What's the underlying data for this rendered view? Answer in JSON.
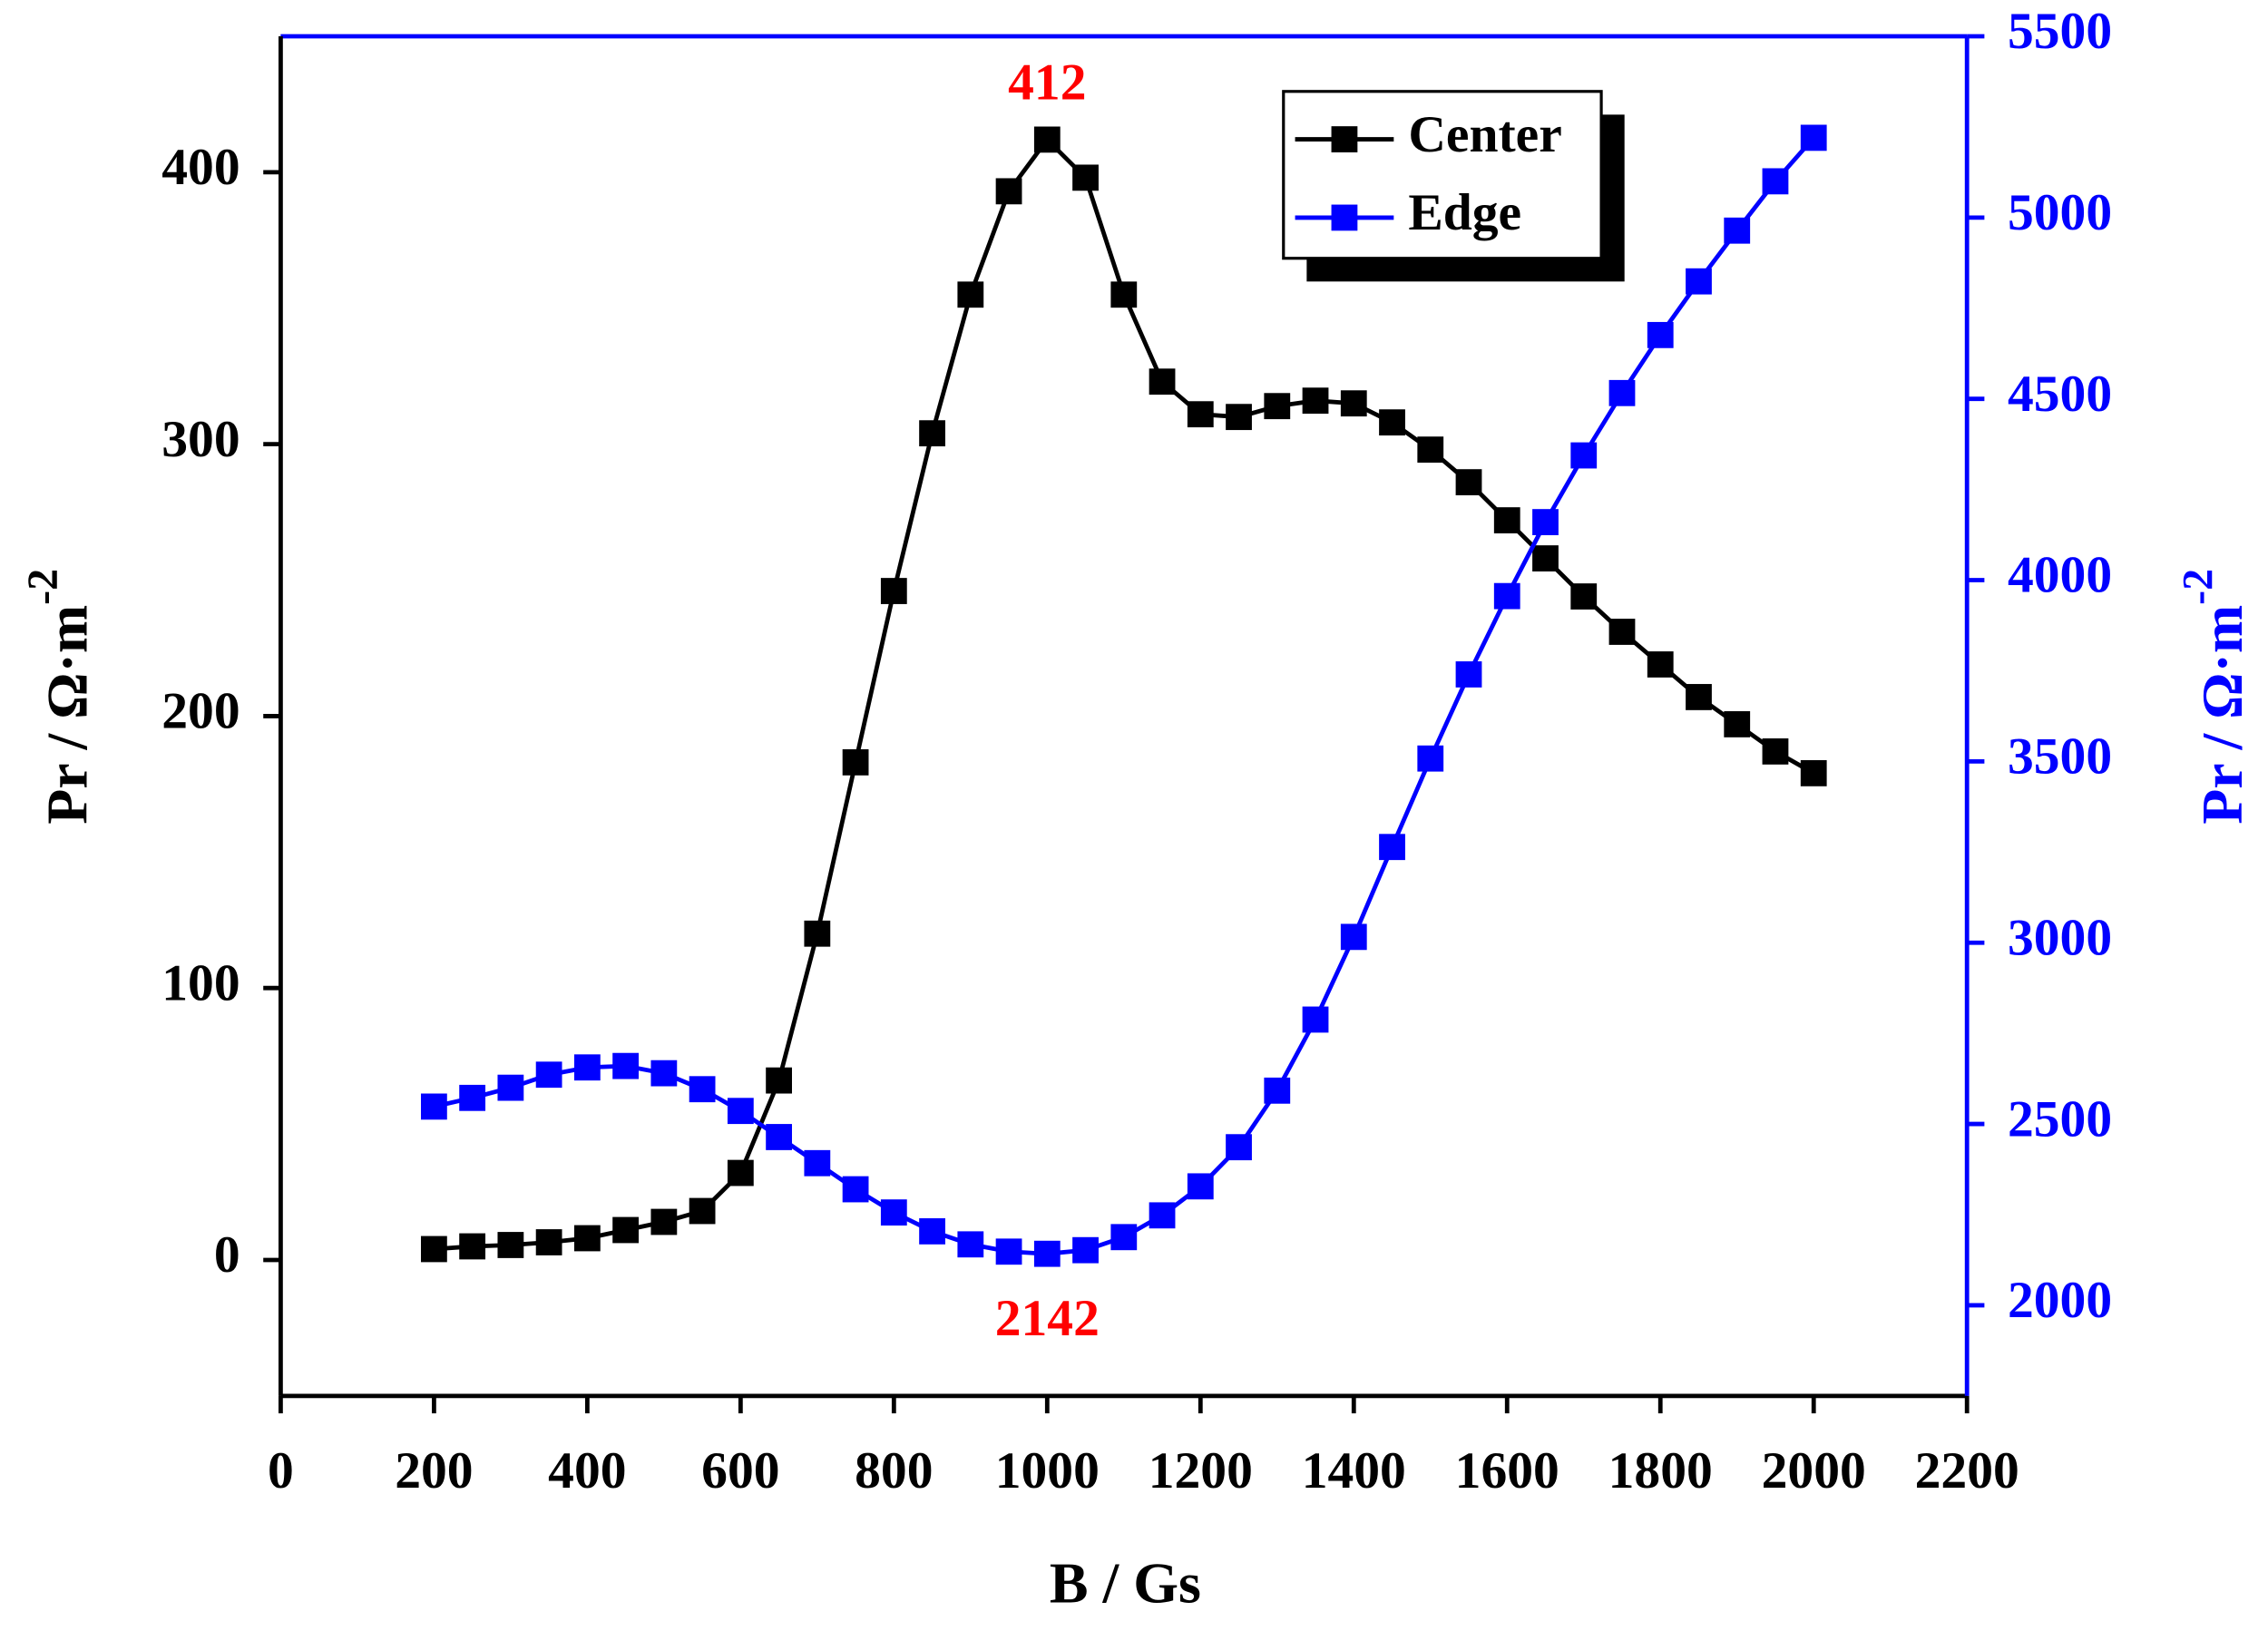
{
  "chart_data": {
    "type": "line",
    "x_label": "B / Gs",
    "y_label": "Pr / Ω·m",
    "y_label_sup": "-2",
    "y2_label": "Pr / Ω·m",
    "y2_label_sup": "-2",
    "x": [
      200,
      250,
      300,
      350,
      400,
      450,
      500,
      550,
      600,
      650,
      700,
      750,
      800,
      850,
      900,
      950,
      1000,
      1050,
      1100,
      1150,
      1200,
      1250,
      1300,
      1350,
      1400,
      1450,
      1500,
      1550,
      1600,
      1650,
      1700,
      1750,
      1800,
      1850,
      1900,
      1950,
      2000
    ],
    "series": [
      {
        "name": "Center",
        "color": "#000000",
        "axis": "y",
        "values": [
          4,
          5,
          5.5,
          6.5,
          8,
          11,
          14,
          18,
          32,
          66,
          120,
          183,
          246,
          304,
          355,
          393,
          412,
          398,
          355,
          323,
          311,
          310,
          314,
          316,
          315,
          308,
          298,
          286,
          272,
          258,
          244,
          231,
          219,
          207,
          197,
          187,
          179
        ]
      },
      {
        "name": "Edge",
        "color": "#0000ff",
        "axis": "y2",
        "values": [
          2548,
          2572,
          2600,
          2636,
          2656,
          2660,
          2640,
          2596,
          2536,
          2464,
          2392,
          2320,
          2256,
          2204,
          2168,
          2148,
          2142,
          2152,
          2188,
          2248,
          2328,
          2436,
          2592,
          2788,
          3016,
          3264,
          3508,
          3740,
          3956,
          4160,
          4344,
          4516,
          4676,
          4824,
          4964,
          5100,
          5220
        ]
      }
    ],
    "annotations": [
      {
        "x": 1000,
        "value": 412,
        "axis": "y",
        "position": "above",
        "color": "#ff0000"
      },
      {
        "x": 1000,
        "value": 2142,
        "axis": "y2",
        "position": "below",
        "color": "#ff0000"
      }
    ],
    "xlim": [
      0,
      2200
    ],
    "xticks": [
      0,
      200,
      400,
      600,
      800,
      1000,
      1200,
      1400,
      1600,
      1800,
      2000,
      2200
    ],
    "ylim": [
      -50,
      450
    ],
    "yticks": [
      0,
      100,
      200,
      300,
      400
    ],
    "y2lim": [
      1750,
      5500
    ],
    "y2ticks": [
      2000,
      2500,
      3000,
      3500,
      4000,
      4500,
      5000,
      5500
    ],
    "y2_color": "#0000ff",
    "legend": "top-right"
  }
}
